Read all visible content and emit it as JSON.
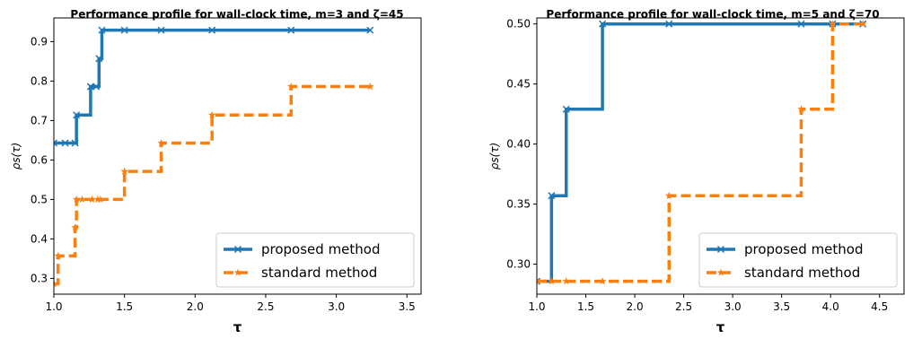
{
  "colors": {
    "proposed": "#1f77b4",
    "standard": "#ff7f0e"
  },
  "chart_data": [
    {
      "type": "line",
      "title": "Performance profile for wall-clock time, m=3 and ζ=45",
      "xlabel": "τ",
      "ylabel": "ρs(τ)",
      "xlim": [
        1.0,
        3.6
      ],
      "ylim": [
        0.26,
        0.96
      ],
      "xticks": [
        1.0,
        1.5,
        2.0,
        2.5,
        3.0,
        3.5
      ],
      "xtick_labels": [
        "1.0",
        "1.5",
        "2.0",
        "2.5",
        "3.0",
        "3.5"
      ],
      "yticks": [
        0.3,
        0.4,
        0.5,
        0.6,
        0.7,
        0.8,
        0.9
      ],
      "ytick_labels": [
        "0.3",
        "0.4",
        "0.5",
        "0.6",
        "0.7",
        "0.8",
        "0.9"
      ],
      "legend": "lower-right",
      "series": [
        {
          "name": "proposed method",
          "style": "solid",
          "marker": "x",
          "x": [
            1.0,
            1.08,
            1.15,
            1.16,
            1.26,
            1.3,
            1.32,
            1.34,
            1.5,
            1.76,
            2.12,
            2.68,
            3.24
          ],
          "y": [
            0.643,
            0.643,
            0.643,
            0.714,
            0.786,
            0.786,
            0.857,
            0.929,
            0.929,
            0.929,
            0.929,
            0.929,
            0.929
          ]
        },
        {
          "name": "standard method",
          "style": "dashed",
          "marker": "*",
          "x": [
            1.0,
            1.03,
            1.15,
            1.16,
            1.2,
            1.27,
            1.31,
            1.33,
            1.5,
            1.76,
            2.12,
            2.68,
            3.24
          ],
          "y": [
            0.286,
            0.357,
            0.429,
            0.5,
            0.5,
            0.5,
            0.5,
            0.5,
            0.571,
            0.643,
            0.714,
            0.786,
            0.786
          ]
        }
      ]
    },
    {
      "type": "line",
      "title": "Performance profile for wall-clock time, m=5 and ζ=70",
      "xlabel": "τ",
      "ylabel": "ρs(τ)",
      "xlim": [
        1.0,
        4.75
      ],
      "ylim": [
        0.275,
        0.505
      ],
      "xticks": [
        1.0,
        1.5,
        2.0,
        2.5,
        3.0,
        3.5,
        4.0,
        4.5
      ],
      "xtick_labels": [
        "1.0",
        "1.5",
        "2.0",
        "2.5",
        "3.0",
        "3.5",
        "4.0",
        "4.5"
      ],
      "yticks": [
        0.3,
        0.35,
        0.4,
        0.45,
        0.5
      ],
      "ytick_labels": [
        "0.30",
        "0.35",
        "0.40",
        "0.45",
        "0.50"
      ],
      "legend": "lower-right",
      "series": [
        {
          "name": "proposed method",
          "style": "solid",
          "marker": "x",
          "x": [
            1.0,
            1.15,
            1.3,
            1.67,
            2.35,
            3.7,
            4.02,
            4.33
          ],
          "y": [
            0.2857,
            0.357,
            0.429,
            0.5,
            0.5,
            0.5,
            0.5,
            0.5
          ]
        },
        {
          "name": "standard method",
          "style": "dashed",
          "marker": "*",
          "x": [
            1.0,
            1.15,
            1.3,
            1.67,
            2.35,
            3.7,
            4.02,
            4.33
          ],
          "y": [
            0.2857,
            0.2857,
            0.2857,
            0.2857,
            0.357,
            0.429,
            0.5,
            0.5
          ]
        }
      ]
    }
  ]
}
